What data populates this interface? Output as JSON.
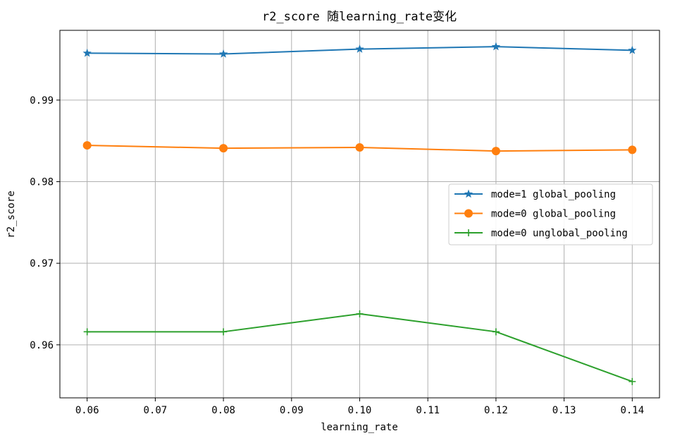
{
  "chart_data": {
    "type": "line",
    "title": "r2_score 随learning_rate变化",
    "xlabel": "learning_rate",
    "ylabel": "r2_score",
    "xlim": [
      0.056,
      0.144
    ],
    "ylim": [
      0.9535,
      0.99855
    ],
    "xticks": [
      0.06,
      0.07,
      0.08,
      0.09,
      0.1,
      0.11,
      0.12,
      0.13,
      0.14
    ],
    "xtick_labels": [
      "0.06",
      "0.07",
      "0.08",
      "0.09",
      "0.10",
      "0.11",
      "0.12",
      "0.13",
      "0.14"
    ],
    "yticks": [
      0.96,
      0.97,
      0.98,
      0.99
    ],
    "ytick_labels": [
      "0.96",
      "0.97",
      "0.98",
      "0.99"
    ],
    "grid": true,
    "legend_position": "center-right",
    "x": [
      0.06,
      0.08,
      0.1,
      0.12,
      0.14
    ],
    "series": [
      {
        "name": "mode=1 global_pooling",
        "color": "#1f77b4",
        "marker": "star",
        "values": [
          0.99575,
          0.99565,
          0.99625,
          0.99655,
          0.9961
        ]
      },
      {
        "name": "mode=0 global_pooling",
        "color": "#ff7f0e",
        "marker": "circle",
        "values": [
          0.98445,
          0.9841,
          0.9842,
          0.98375,
          0.9839
        ]
      },
      {
        "name": "mode=0 unglobal_pooling",
        "color": "#2ca02c",
        "marker": "plus",
        "values": [
          0.9616,
          0.9616,
          0.9638,
          0.9616,
          0.9555
        ]
      }
    ]
  }
}
